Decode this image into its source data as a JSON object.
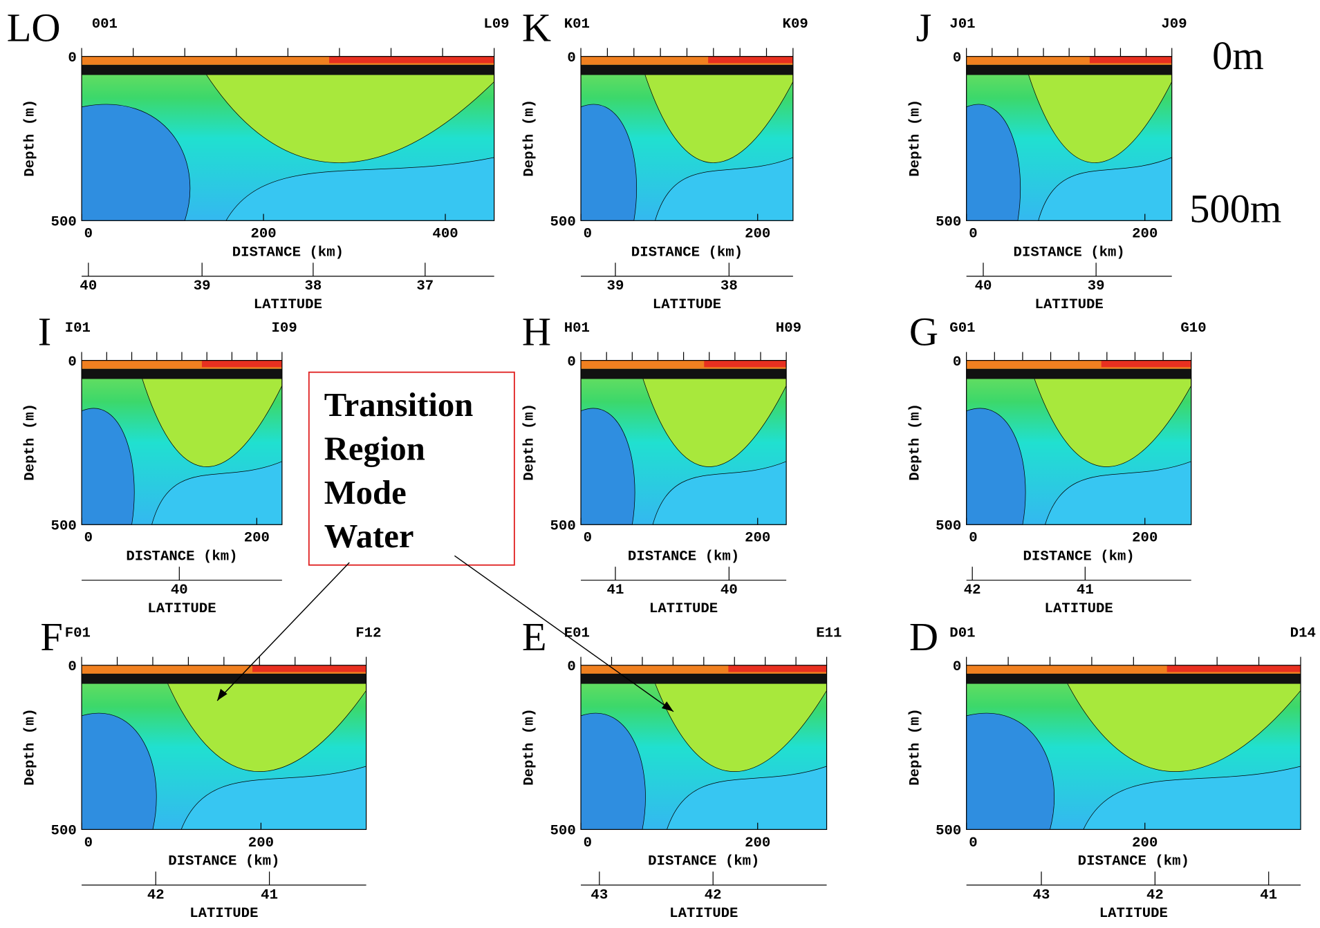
{
  "corner_labels": {
    "top": "0m",
    "bottom": "500m"
  },
  "annotation": {
    "lines": [
      "Transition",
      "Region",
      "Mode",
      "Water"
    ]
  },
  "axis_labels": {
    "depth": "Depth (m)",
    "distance": "DISTANCE (km)",
    "latitude": "LATITUDE"
  },
  "panels": [
    {
      "letter": "LO",
      "start": "001",
      "end": "L09",
      "depth_ticks": [
        "0",
        "500"
      ],
      "distance_ticks": [
        "0",
        "200",
        "400"
      ],
      "latitude_ticks": [
        "40",
        "39",
        "38",
        "37"
      ]
    },
    {
      "letter": "K",
      "start": "K01",
      "end": "K09",
      "depth_ticks": [
        "0",
        "500"
      ],
      "distance_ticks": [
        "0",
        "200"
      ],
      "latitude_ticks": [
        "39",
        "38"
      ]
    },
    {
      "letter": "J",
      "start": "J01",
      "end": "J09",
      "depth_ticks": [
        "0",
        "500"
      ],
      "distance_ticks": [
        "0",
        "200"
      ],
      "latitude_ticks": [
        "40",
        "39"
      ]
    },
    {
      "letter": "I",
      "start": "I01",
      "end": "I09",
      "depth_ticks": [
        "0",
        "500"
      ],
      "distance_ticks": [
        "0",
        "200"
      ],
      "latitude_ticks": [
        "40"
      ]
    },
    {
      "letter": "H",
      "start": "H01",
      "end": "H09",
      "depth_ticks": [
        "0",
        "500"
      ],
      "distance_ticks": [
        "0",
        "200"
      ],
      "latitude_ticks": [
        "41",
        "40"
      ]
    },
    {
      "letter": "G",
      "start": "G01",
      "end": "G10",
      "depth_ticks": [
        "0",
        "500"
      ],
      "distance_ticks": [
        "0",
        "200"
      ],
      "latitude_ticks": [
        "42",
        "41"
      ]
    },
    {
      "letter": "F",
      "start": "F01",
      "end": "F12",
      "depth_ticks": [
        "0",
        "500"
      ],
      "distance_ticks": [
        "0",
        "200"
      ],
      "latitude_ticks": [
        "42",
        "41"
      ]
    },
    {
      "letter": "E",
      "start": "E01",
      "end": "E11",
      "depth_ticks": [
        "0",
        "500"
      ],
      "distance_ticks": [
        "0",
        "200"
      ],
      "latitude_ticks": [
        "43",
        "42"
      ]
    },
    {
      "letter": "D",
      "start": "D01",
      "end": "D14",
      "depth_ticks": [
        "0",
        "500"
      ],
      "distance_ticks": [
        "0",
        "200"
      ],
      "latitude_ticks": [
        "43",
        "42",
        "41"
      ]
    }
  ]
}
